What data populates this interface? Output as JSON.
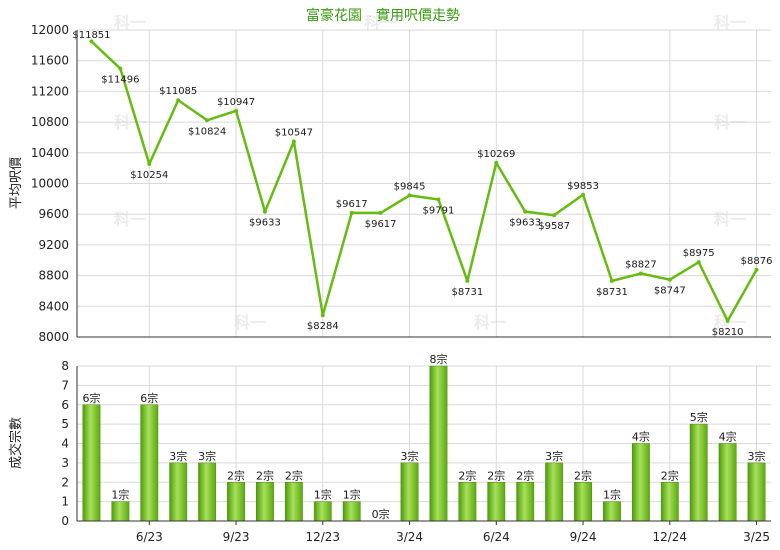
{
  "chart_data": [
    {
      "type": "line",
      "title": "富豪花園 - 實用呎價走勢",
      "ylabel": "平均呎價",
      "ylim": [
        8000,
        12000
      ],
      "yticks": [
        8000,
        8400,
        8800,
        9200,
        9600,
        10000,
        10400,
        10800,
        11200,
        11600,
        12000
      ],
      "grid": true,
      "line_color": "#66bb11",
      "values": [
        11851,
        11496,
        10254,
        11085,
        10824,
        10947,
        9633,
        10547,
        8284,
        9617,
        9617,
        9845,
        9791,
        8731,
        10269,
        9633,
        9587,
        9853,
        8731,
        8827,
        8747,
        8975,
        8210,
        8876
      ],
      "value_labels": [
        "$11851",
        "$11496",
        "$10254",
        "$11085",
        "$10824",
        "$10947",
        "$9633",
        "$10547",
        "$8284",
        "$9617",
        "$9617",
        "$9845",
        "$9791",
        "$8731",
        "$10269",
        "$9633",
        "$9587",
        "$9853",
        "$8731",
        "$8827",
        "$8747",
        "$8975",
        "$8210",
        "$8876"
      ]
    },
    {
      "type": "bar",
      "ylabel": "成交宗數",
      "ylim": [
        0,
        8
      ],
      "yticks": [
        0,
        1,
        2,
        3,
        4,
        5,
        6,
        7,
        8
      ],
      "grid": true,
      "bar_color": "#66bb11",
      "values": [
        6,
        1,
        6,
        3,
        3,
        2,
        2,
        2,
        1,
        1,
        0,
        3,
        8,
        2,
        2,
        2,
        3,
        2,
        1,
        4,
        2,
        5,
        4,
        3
      ],
      "value_labels": [
        "6宗",
        "1宗",
        "6宗",
        "3宗",
        "3宗",
        "2宗",
        "2宗",
        "2宗",
        "1宗",
        "1宗",
        "0宗",
        "3宗",
        "8宗",
        "2宗",
        "2宗",
        "2宗",
        "3宗",
        "2宗",
        "1宗",
        "4宗",
        "2宗",
        "5宗",
        "4宗",
        "3宗"
      ],
      "x_tick_labels": [
        {
          "index": 2,
          "label": "6/23"
        },
        {
          "index": 5,
          "label": "9/23"
        },
        {
          "index": 8,
          "label": "12/23"
        },
        {
          "index": 11,
          "label": "3/24"
        },
        {
          "index": 14,
          "label": "6/24"
        },
        {
          "index": 17,
          "label": "9/24"
        },
        {
          "index": 20,
          "label": "12/24"
        },
        {
          "index": 23,
          "label": "3/25"
        }
      ]
    }
  ],
  "watermark": "科一"
}
